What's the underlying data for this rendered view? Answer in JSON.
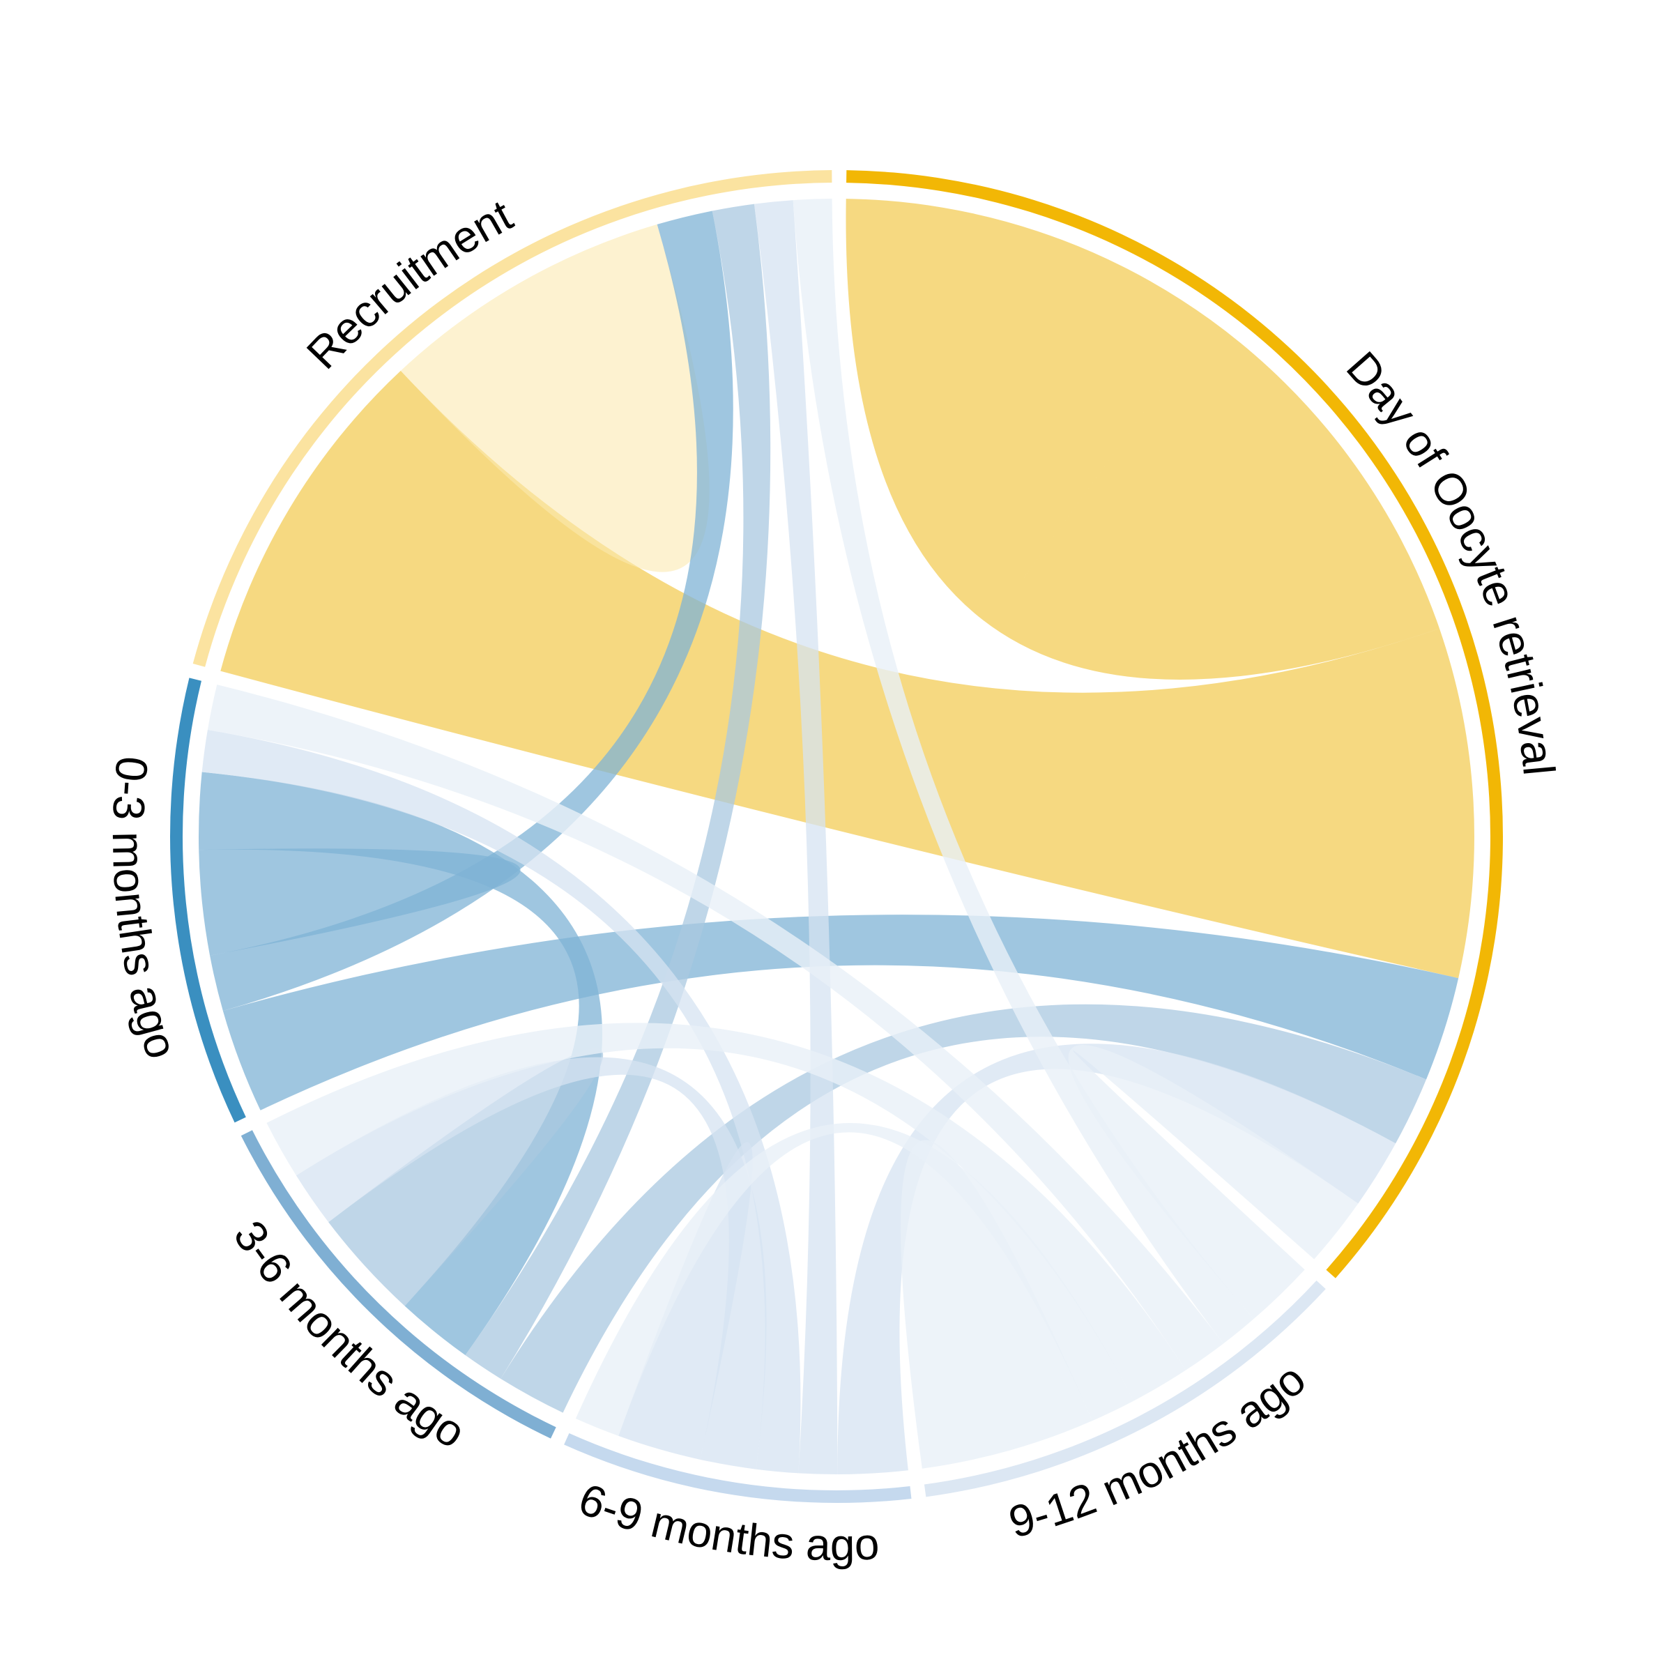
{
  "chart_data": {
    "type": "chord",
    "title": "",
    "sectors": [
      {
        "name": "Day of Oocyte retrieval",
        "color": "#F2B705"
      },
      {
        "name": "9-12 months ago",
        "color": "#DCE7F3"
      },
      {
        "name": "6-9 months ago",
        "color": "#C5D9EE"
      },
      {
        "name": "3-6 months ago",
        "color": "#7FAFD3"
      },
      {
        "name": "0-3 months ago",
        "color": "#3A8FC0"
      },
      {
        "name": "Recruitment",
        "color": "#FBE3A0"
      }
    ],
    "links": [
      {
        "source": "Day of Oocyte retrieval",
        "target": "Day of Oocyte retrieval",
        "value": 11,
        "color": "#F2C94C",
        "opacity": 0.7
      },
      {
        "source": "Day of Oocyte retrieval",
        "target": "Recruitment",
        "value": 10,
        "color": "#F2C94C",
        "opacity": 0.7
      },
      {
        "source": "Day of Oocyte retrieval",
        "target": "0-3 months ago",
        "value": 3,
        "color": "#7FB3D5",
        "opacity": 0.75
      },
      {
        "source": "Day of Oocyte retrieval",
        "target": "3-6 months ago",
        "value": 2,
        "color": "#A9C8E0",
        "opacity": 0.75
      },
      {
        "source": "Day of Oocyte retrieval",
        "target": "6-9 months ago",
        "value": 2,
        "color": "#D5E3F1",
        "opacity": 0.75
      },
      {
        "source": "Day of Oocyte retrieval",
        "target": "9-12 months ago",
        "value": 2,
        "color": "#E8F0F8",
        "opacity": 0.8
      },
      {
        "source": "Recruitment",
        "target": "Recruitment",
        "value": 4.2,
        "color": "#FCE9B0",
        "opacity": 0.6
      },
      {
        "source": "Recruitment",
        "target": "0-3 months ago",
        "value": 1.6,
        "color": "#7FB3D5",
        "opacity": 0.75
      },
      {
        "source": "Recruitment",
        "target": "3-6 months ago",
        "value": 1.2,
        "color": "#A9C8E0",
        "opacity": 0.75
      },
      {
        "source": "Recruitment",
        "target": "6-9 months ago",
        "value": 1.1,
        "color": "#D5E3F1",
        "opacity": 0.75
      },
      {
        "source": "Recruitment",
        "target": "9-12 months ago",
        "value": 1.1,
        "color": "#E8F0F8",
        "opacity": 0.8
      },
      {
        "source": "0-3 months ago",
        "target": "0-3 months ago",
        "value": 1.5,
        "color": "#7FB3D5",
        "opacity": 0.75
      },
      {
        "source": "0-3 months ago",
        "target": "3-6 months ago",
        "value": 2.2,
        "color": "#7FB3D5",
        "opacity": 0.75
      },
      {
        "source": "0-3 months ago",
        "target": "6-9 months ago",
        "value": 1.2,
        "color": "#D5E3F1",
        "opacity": 0.75
      },
      {
        "source": "0-3 months ago",
        "target": "9-12 months ago",
        "value": 1.3,
        "color": "#E8F0F8",
        "opacity": 0.8
      },
      {
        "source": "3-6 months ago",
        "target": "3-6 months ago",
        "value": 1.6,
        "color": "#A9C8E0",
        "opacity": 0.75
      },
      {
        "source": "3-6 months ago",
        "target": "6-9 months ago",
        "value": 1.6,
        "color": "#D5E3F1",
        "opacity": 0.75
      },
      {
        "source": "3-6 months ago",
        "target": "9-12 months ago",
        "value": 1.7,
        "color": "#E8F0F8",
        "opacity": 0.8
      },
      {
        "source": "6-9 months ago",
        "target": "6-9 months ago",
        "value": 1.2,
        "color": "#D5E3F1",
        "opacity": 0.75
      },
      {
        "source": "6-9 months ago",
        "target": "9-12 months ago",
        "value": 1.3,
        "color": "#E8F0F8",
        "opacity": 0.8
      },
      {
        "source": "9-12 months ago",
        "target": "9-12 months ago",
        "value": 2.5,
        "color": "#E8F0F8",
        "opacity": 0.8
      }
    ]
  }
}
